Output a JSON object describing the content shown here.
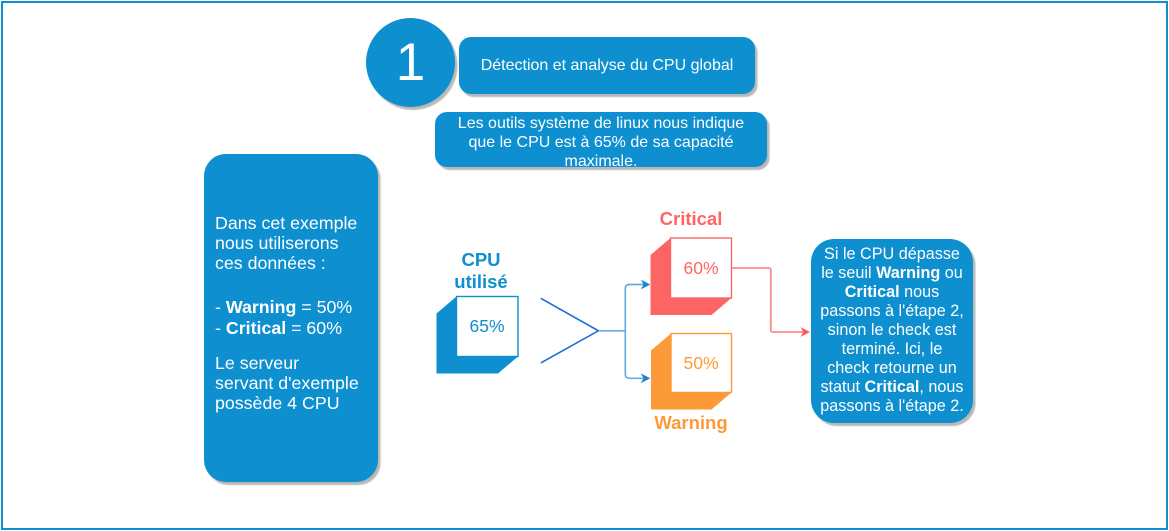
{
  "colors": {
    "primary_blue": "#0d8fd0",
    "critical_red": "#fd6565",
    "warning_orange": "#fd9a38",
    "connector_blue_dark": "#1a6fd6",
    "connector_blue_light": "#68acdf",
    "arrowhead_blue": "#1787ce",
    "connector_red_light": "#f98f8f",
    "arrowhead_red": "#f85b5b",
    "text_white": "#ffffff"
  },
  "step": {
    "number": "1",
    "title": "Détection et analyse du CPU global"
  },
  "info_box": {
    "lines": [
      "Les outils système de linux nous indique",
      "que le CPU est à 65% de sa capacité",
      "maximale."
    ]
  },
  "left_panel": {
    "paragraphs": [
      [
        "Dans cet exemple",
        "nous utiliserons",
        "ces données :"
      ],
      [
        [
          {
            "t": "- ",
            "b": false
          },
          {
            "t": "Warning",
            "b": true
          },
          {
            "t": " = 50%",
            "b": false
          }
        ],
        [
          {
            "t": "- ",
            "b": false
          },
          {
            "t": "Critical",
            "b": true
          },
          {
            "t": " = 60%",
            "b": false
          }
        ]
      ],
      [
        "Le serveur",
        "servant d'exemple",
        "possède 4 CPU"
      ]
    ]
  },
  "cpu_box": {
    "label_lines": [
      "CPU",
      "utilisé"
    ],
    "value": "65%"
  },
  "critical_box": {
    "label": "Critical",
    "value": "60%"
  },
  "warning_box": {
    "label": "Warning",
    "value": "50%"
  },
  "right_panel": {
    "lines": [
      [
        "Si le CPU dépasse"
      ],
      [
        {
          "t": "le seuil ",
          "b": false
        },
        {
          "t": "Warning",
          "b": true
        },
        {
          "t": " ou",
          "b": false
        }
      ],
      [
        {
          "t": "Critical",
          "b": true
        },
        {
          "t": " nous",
          "b": false
        }
      ],
      [
        "passons à l'étape 2,"
      ],
      [
        "sinon le check est"
      ],
      [
        "terminé. Ici, le"
      ],
      [
        "check retourne un"
      ],
      [
        {
          "t": "statut ",
          "b": false
        },
        {
          "t": "Critical",
          "b": true
        },
        {
          "t": ", nous",
          "b": false
        }
      ],
      [
        "passons à l'étape 2."
      ]
    ]
  }
}
